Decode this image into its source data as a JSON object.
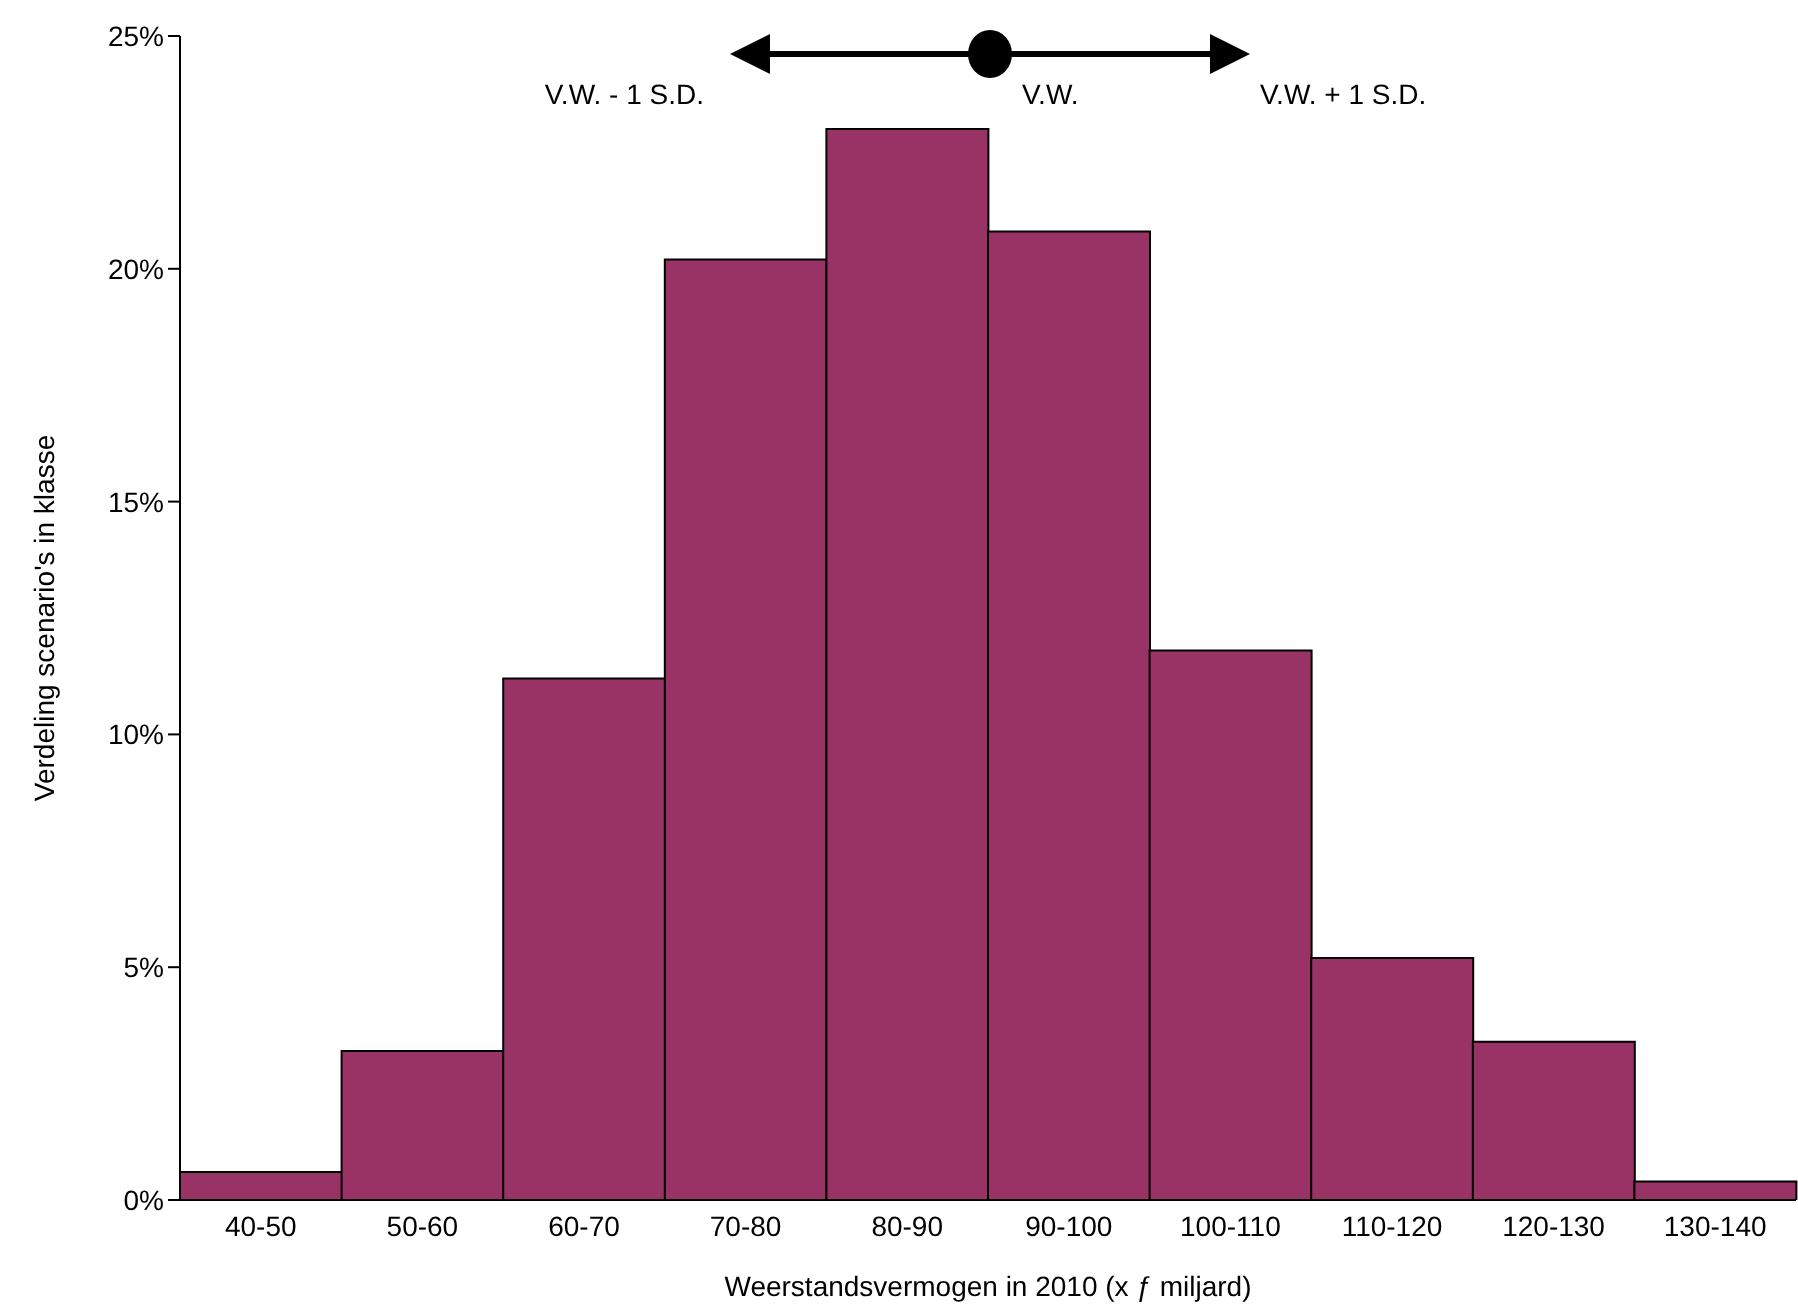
{
  "chart_data": {
    "type": "bar",
    "xlabel": "Weerstandsvermogen in 2010 (x ƒ miljard)",
    "ylabel": "Verdeling scenario's in klasse",
    "categories": [
      "40-50",
      "50-60",
      "60-70",
      "70-80",
      "80-90",
      "90-100",
      "100-110",
      "110-120",
      "120-130",
      "130-140"
    ],
    "values": [
      0.6,
      3.2,
      11.2,
      20.2,
      23.0,
      20.8,
      11.8,
      5.2,
      3.4,
      0.4
    ],
    "color": "#993366",
    "ylim": [
      0,
      25
    ],
    "yticks": [
      {
        "value": 0,
        "label": "0%"
      },
      {
        "value": 5,
        "label": "5%"
      },
      {
        "value": 10,
        "label": "10%"
      },
      {
        "value": 15,
        "label": "15%"
      },
      {
        "value": 20,
        "label": "20%"
      },
      {
        "value": 25,
        "label": "25%"
      }
    ],
    "grid": false,
    "legend": false,
    "annotations": [
      "V.W. - 1 S.D.",
      "V.W.",
      "V.W. + 1 S.D."
    ]
  }
}
